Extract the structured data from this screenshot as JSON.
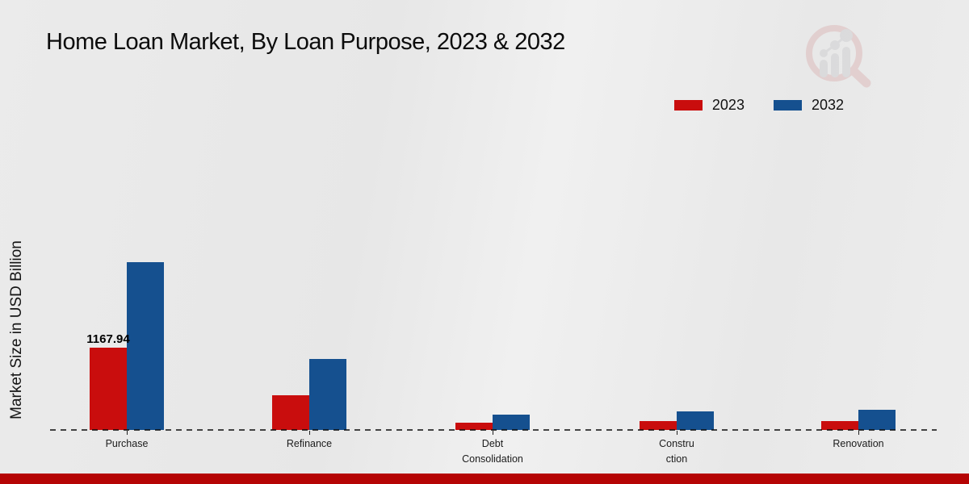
{
  "chart_data": {
    "type": "bar",
    "title": "Home Loan Market, By Loan Purpose, 2023 & 2032",
    "ylabel": "Market Size in USD Billion",
    "xlabel": "",
    "categories": [
      "Purchase",
      "Refinance",
      "Debt\nConsolidation",
      "Constru\nction",
      "Renovation"
    ],
    "series": [
      {
        "name": "2023",
        "color": "#c90d0d",
        "values": [
          1167.94,
          495,
          100,
          125,
          125
        ]
      },
      {
        "name": "2032",
        "color": "#15508f",
        "values": [
          2380,
          1010,
          220,
          265,
          285
        ]
      }
    ],
    "annotations": [
      {
        "series_index": 0,
        "category_index": 0,
        "text": "1167.94"
      }
    ],
    "ylim": [
      0,
      2500
    ],
    "grid": false,
    "legend_position": "top-right",
    "baseline_style": "dashed"
  },
  "colors": {
    "series_2023": "#c90d0d",
    "series_2032": "#15508f",
    "footer_band": "#b50404",
    "background": "#e9e9e9",
    "text": "#111111"
  }
}
